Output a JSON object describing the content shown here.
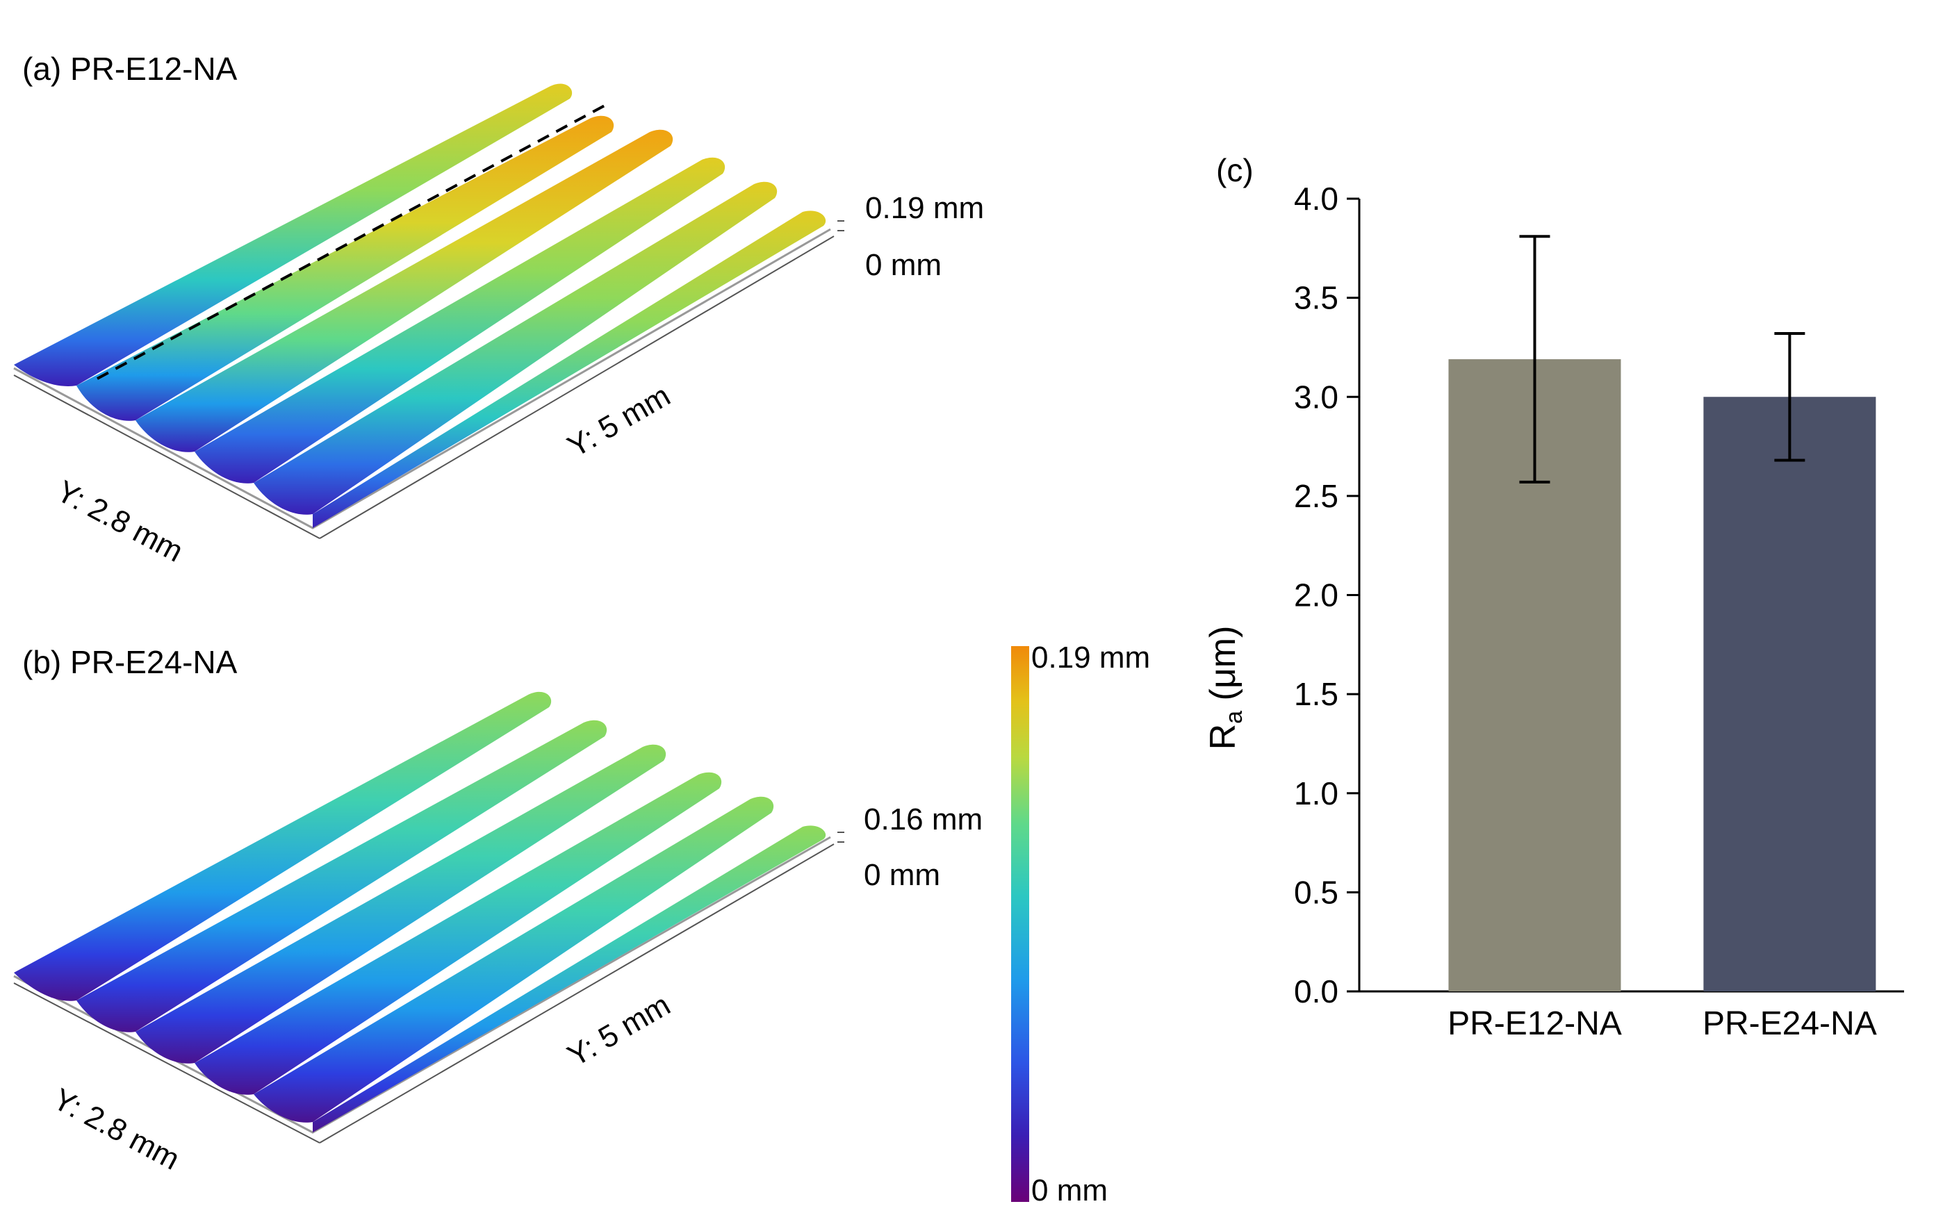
{
  "panel_a": {
    "title": "(a) PR-E12-NA",
    "z_top_label": "0.19 mm",
    "z_bottom_label": "0 mm",
    "y_short_label": "Y: 2.8 mm",
    "y_long_label": "Y: 5 mm"
  },
  "panel_b": {
    "title": "(b) PR-E24-NA",
    "z_top_label": "0.16 mm",
    "z_bottom_label": "0 mm",
    "y_short_label": "Y: 2.8 mm",
    "y_long_label": "Y: 5 mm"
  },
  "colorbar": {
    "max_label": "0.19 mm",
    "min_label": "0 mm",
    "colors": [
      "#6a0078",
      "#3a1fb5",
      "#2d55e6",
      "#1f9bea",
      "#2cc7c2",
      "#5fd98a",
      "#b9d940",
      "#e3c21a",
      "#f08a0a"
    ]
  },
  "panel_c": {
    "label": "(c)",
    "ylabel_main": "R",
    "ylabel_sub": "a",
    "ylabel_unit": " (μm)"
  },
  "chart_data": {
    "type": "bar",
    "categories": [
      "PR-E12-NA",
      "PR-E24-NA"
    ],
    "values": [
      3.19,
      3.0
    ],
    "errors": [
      0.62,
      0.32
    ],
    "colors": [
      "#8a8877",
      "#4b5168"
    ],
    "ylim": [
      0,
      4.0
    ],
    "yticks": [
      "0.0",
      "0.5",
      "1.0",
      "1.5",
      "2.0",
      "2.5",
      "3.0",
      "3.5",
      "4.0"
    ],
    "grid": false
  }
}
